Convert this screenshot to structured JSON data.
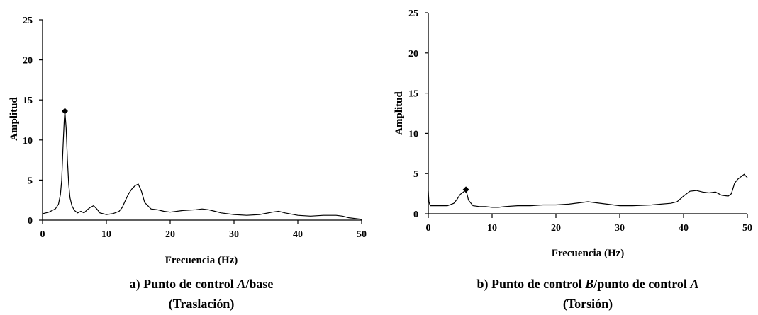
{
  "chart_data": [
    {
      "type": "line",
      "xlabel": "Frecuencia (Hz)",
      "ylabel": "Amplitud",
      "xlim": [
        0,
        50
      ],
      "ylim": [
        0,
        25
      ],
      "xticks": [
        "0",
        "10",
        "20",
        "30",
        "40",
        "50"
      ],
      "yticks": [
        "0",
        "5",
        "10",
        "15",
        "20",
        "25"
      ],
      "caption": {
        "line1_prefix": "a) Punto de control ",
        "line1_var1": "A",
        "line1_mid": "/base",
        "line1_var2": "",
        "line2": "(Traslación)"
      },
      "peak": {
        "x": 3.5,
        "y": 13.6
      },
      "series": [
        {
          "x": [
            0,
            0.5,
            1,
            1.5,
            2,
            2.5,
            2.8,
            3.0,
            3.2,
            3.4,
            3.5,
            3.7,
            3.9,
            4.1,
            4.3,
            4.6,
            5,
            5.5,
            6,
            6.5,
            7,
            7.5,
            8,
            8.5,
            9,
            10,
            11,
            12,
            12.5,
            13,
            13.5,
            14,
            14.5,
            15,
            15.5,
            16,
            17,
            18,
            19,
            20,
            22,
            24,
            25,
            26,
            27,
            28,
            30,
            32,
            34,
            36,
            37,
            38,
            40,
            42,
            44,
            45,
            46,
            47,
            48,
            49,
            50
          ],
          "y": [
            0.8,
            0.9,
            1.0,
            1.2,
            1.4,
            2.0,
            3.2,
            5.0,
            9.0,
            12.5,
            13.6,
            11.5,
            7.5,
            4.5,
            2.8,
            1.8,
            1.2,
            0.9,
            1.1,
            0.9,
            1.3,
            1.6,
            1.8,
            1.4,
            0.9,
            0.7,
            0.8,
            1.1,
            1.6,
            2.5,
            3.3,
            3.9,
            4.3,
            4.5,
            3.6,
            2.2,
            1.4,
            1.3,
            1.1,
            1.0,
            1.2,
            1.3,
            1.4,
            1.3,
            1.1,
            0.9,
            0.7,
            0.6,
            0.7,
            1.0,
            1.1,
            0.9,
            0.6,
            0.5,
            0.6,
            0.6,
            0.6,
            0.5,
            0.3,
            0.2,
            0.1
          ]
        }
      ]
    },
    {
      "type": "line",
      "xlabel": "Frecuencia (Hz)",
      "ylabel": "Amplitud",
      "xlim": [
        0,
        50
      ],
      "ylim": [
        0,
        25
      ],
      "xticks": [
        "0",
        "10",
        "20",
        "30",
        "40",
        "50"
      ],
      "yticks": [
        "0",
        "5",
        "10",
        "15",
        "20",
        "25"
      ],
      "caption": {
        "line1_prefix": "b) Punto de control ",
        "line1_var1": "B",
        "line1_mid": "/punto de control ",
        "line1_var2": "A",
        "line2": "(Torsión)"
      },
      "peak": {
        "x": 5.9,
        "y": 3.0
      },
      "series": [
        {
          "x": [
            0,
            0.1,
            0.3,
            1,
            2,
            3,
            4,
            4.5,
            5,
            5.5,
            5.9,
            6.3,
            7,
            8,
            9,
            10,
            11,
            12,
            14,
            16,
            18,
            20,
            22,
            24,
            25,
            26,
            28,
            30,
            32,
            35,
            38,
            39,
            40,
            41,
            42,
            43,
            44,
            45,
            46,
            47,
            47.5,
            48,
            48.5,
            49,
            49.5,
            50
          ],
          "y": [
            2.8,
            1.5,
            1.0,
            1.0,
            1.0,
            1.0,
            1.3,
            1.8,
            2.4,
            2.7,
            3.0,
            1.7,
            1.0,
            0.9,
            0.9,
            0.8,
            0.8,
            0.9,
            1.0,
            1.0,
            1.1,
            1.1,
            1.2,
            1.4,
            1.5,
            1.4,
            1.2,
            1.0,
            1.0,
            1.1,
            1.3,
            1.5,
            2.2,
            2.8,
            2.9,
            2.7,
            2.6,
            2.7,
            2.3,
            2.2,
            2.5,
            3.8,
            4.3,
            4.6,
            4.9,
            4.5
          ]
        }
      ]
    }
  ]
}
